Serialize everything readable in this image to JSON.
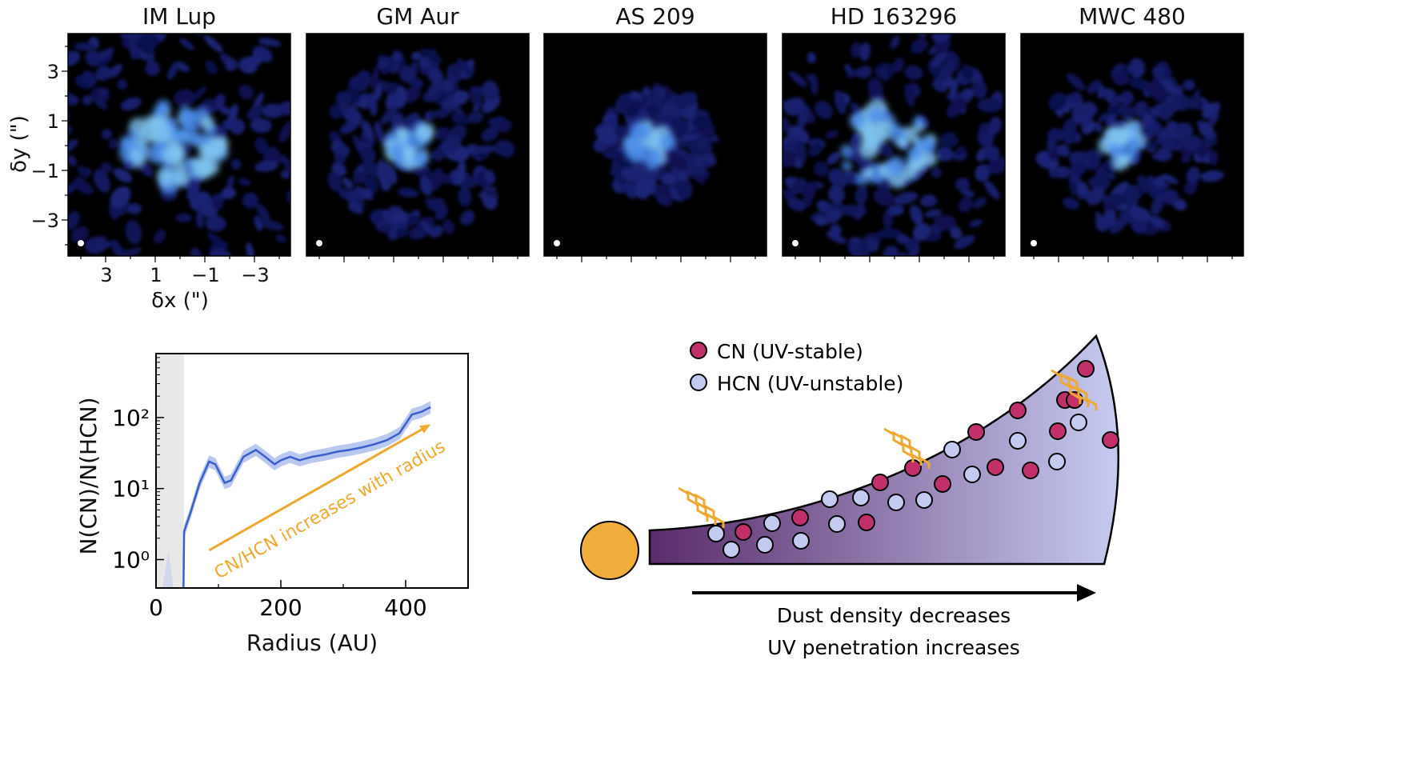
{
  "panels": [
    {
      "title": "IM Lup",
      "extent": 1.25,
      "blobs": 26,
      "seed": 3,
      "ring": false
    },
    {
      "title": "GM Aur",
      "extent": 0.82,
      "blobs": 10,
      "seed": 11,
      "ring": true
    },
    {
      "title": "AS 209",
      "extent": 0.5,
      "blobs": 8,
      "seed": 17,
      "ring": true
    },
    {
      "title": "HD 163296",
      "extent": 1.1,
      "blobs": 16,
      "seed": 23,
      "ring": false
    },
    {
      "title": "MWC 480",
      "extent": 0.78,
      "blobs": 8,
      "seed": 31,
      "ring": true
    }
  ],
  "image_axes": {
    "ylabel": "δy (\")",
    "xlabel": "δx (\")",
    "yticks": [
      "3",
      "1",
      "−1",
      "−3"
    ],
    "xticks": [
      "3",
      "1",
      "−1",
      "−3"
    ]
  },
  "chart_data": {
    "type": "line",
    "xlabel": "Radius (AU)",
    "ylabel": "N(CN)/N(HCN)",
    "xlim": [
      0,
      500
    ],
    "ylim_log10": [
      -0.4,
      2.9
    ],
    "yscale": "log",
    "xticks": [
      0,
      200,
      400
    ],
    "yticks": [
      {
        "value": 1,
        "label": "10⁰"
      },
      {
        "value": 10,
        "label": "10¹"
      },
      {
        "value": 100,
        "label": "10²"
      }
    ],
    "shaded_region_x": [
      0,
      45
    ],
    "series": [
      {
        "x": [
          45,
          55,
          70,
          85,
          95,
          110,
          120,
          140,
          160,
          175,
          190,
          200,
          215,
          230,
          250,
          270,
          290,
          310,
          330,
          350,
          370,
          390,
          410,
          425,
          440
        ],
        "y": [
          2.5,
          4.5,
          12,
          24,
          22,
          12,
          13,
          28,
          35,
          28,
          22,
          25,
          28,
          25,
          28,
          30,
          33,
          35,
          38,
          42,
          48,
          60,
          110,
          120,
          140
        ]
      }
    ],
    "annotation": "CN/HCN increases with radius",
    "annotation_color": "#f0a830",
    "line_color": "#3a5fcd"
  },
  "diagram": {
    "legend": [
      {
        "label": "CN (UV-stable)",
        "color": "#c2306a"
      },
      {
        "label": "HCN (UV-unstable)",
        "color": "#c5cbf0"
      }
    ],
    "arrow_caption_1": "Dust density decreases",
    "arrow_caption_2": "UV penetration increases",
    "star_color": "#f2ae3d",
    "wedge_color_inner": "#5a2b6a",
    "wedge_color_outer": "#c6cbf1",
    "uv_color": "#f0a830"
  }
}
